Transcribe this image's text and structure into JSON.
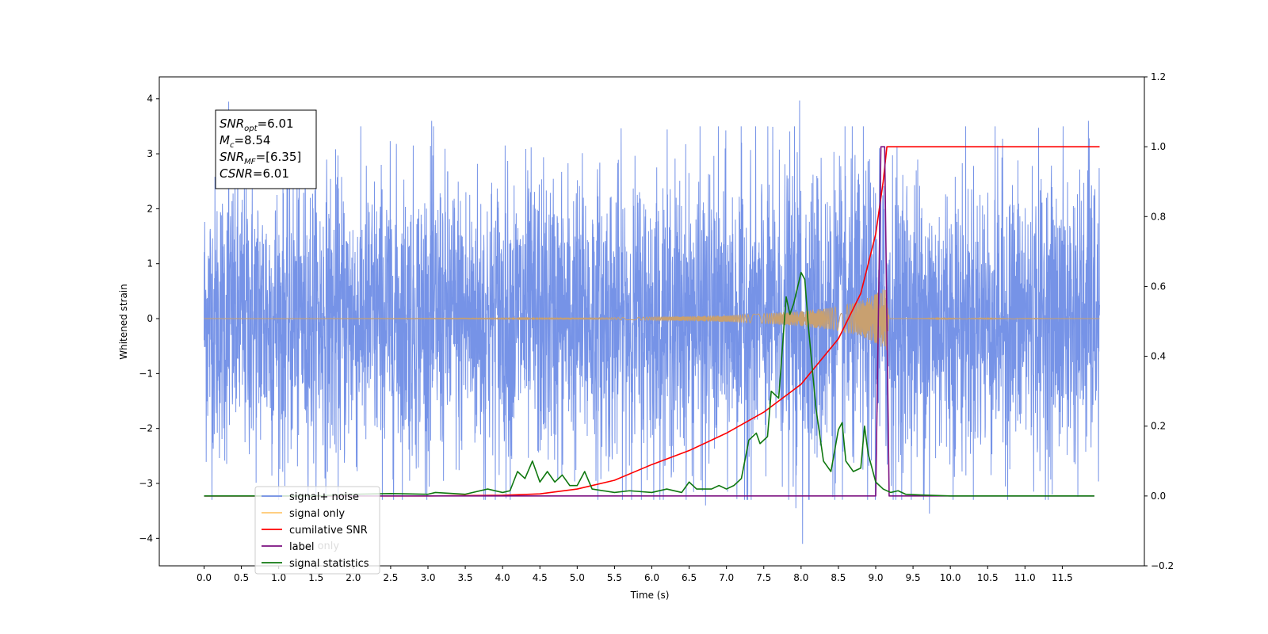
{
  "chart_data": {
    "type": "line",
    "xlabel": "Time (s)",
    "ylabel_left": "Whitened strain",
    "ylabel_right": "",
    "xlim": [
      -0.6,
      12.6
    ],
    "ylim_left": [
      -4.5,
      4.4
    ],
    "ylim_right": [
      -0.2,
      1.2
    ],
    "x_ticks": [
      0.0,
      0.5,
      1.0,
      1.5,
      2.0,
      2.5,
      3.0,
      3.5,
      4.0,
      4.5,
      5.0,
      5.5,
      6.0,
      6.5,
      7.0,
      7.5,
      8.0,
      8.5,
      9.0,
      9.5,
      10.0,
      10.5,
      11.0,
      11.5
    ],
    "x_tick_labels": [
      "0.0",
      "0.5",
      "1.0",
      "1.5",
      "2.0",
      "2.5",
      "3.0",
      "3.5",
      "4.0",
      "4.5",
      "5.0",
      "5.5",
      "6.0",
      "6.5",
      "7.0",
      "7.5",
      "8.0",
      "8.5",
      "9.0",
      "9.5",
      "10.0",
      "10.5",
      "11.0",
      "11.5"
    ],
    "y_left_ticks": [
      -4,
      -3,
      -2,
      -1,
      0,
      1,
      2,
      3,
      4
    ],
    "y_left_tick_labels": [
      "−4",
      "−3",
      "−2",
      "−1",
      "0",
      "1",
      "2",
      "3",
      "4"
    ],
    "y_right_ticks": [
      -0.2,
      0.0,
      0.2,
      0.4,
      0.6,
      0.8,
      1.0,
      1.2
    ],
    "y_right_tick_labels": [
      "−0.2",
      "0.0",
      "0.2",
      "0.4",
      "0.6",
      "0.8",
      "1.0",
      "1.2"
    ],
    "grid": false,
    "legend_position": "lower-left",
    "series": [
      {
        "name": "signal+ noise",
        "axis": "left",
        "color": "#6f8de6",
        "x_range": [
          0.0,
          12.0
        ],
        "envelope": [
          [
            0.0,
            2.3
          ],
          [
            1.0,
            2.4
          ],
          [
            2.0,
            2.4
          ],
          [
            3.0,
            2.4
          ],
          [
            4.0,
            2.4
          ],
          [
            5.0,
            2.4
          ],
          [
            6.0,
            2.4
          ],
          [
            7.0,
            2.4
          ],
          [
            8.0,
            2.5
          ],
          [
            9.0,
            2.6
          ],
          [
            10.0,
            2.4
          ],
          [
            11.0,
            2.4
          ],
          [
            12.0,
            2.4
          ]
        ],
        "peaks_high": [
          [
            0.33,
            3.95
          ],
          [
            3.05,
            3.6
          ],
          [
            7.98,
            3.97
          ],
          [
            11.85,
            3.6
          ],
          [
            9.05,
            3.1
          ]
        ],
        "peaks_low": [
          [
            3.75,
            -3.3
          ],
          [
            8.02,
            -4.1
          ],
          [
            9.72,
            -3.55
          ],
          [
            6.72,
            -3.4
          ],
          [
            7.93,
            -3.45
          ]
        ]
      },
      {
        "name": "signal only",
        "axis": "left",
        "color": "#c8a070",
        "envelope": [
          [
            0.0,
            0.0
          ],
          [
            5.0,
            0.01
          ],
          [
            6.0,
            0.03
          ],
          [
            7.0,
            0.06
          ],
          [
            7.5,
            0.09
          ],
          [
            8.0,
            0.14
          ],
          [
            8.5,
            0.22
          ],
          [
            8.8,
            0.32
          ],
          [
            9.0,
            0.45
          ],
          [
            9.15,
            0.58
          ],
          [
            9.18,
            0.0
          ],
          [
            10.0,
            0.01
          ],
          [
            12.0,
            0.0
          ]
        ]
      },
      {
        "name": "cumilative SNR",
        "axis": "right",
        "color": "#ff0000",
        "points": [
          [
            0.0,
            0.0
          ],
          [
            3.0,
            0.0
          ],
          [
            4.0,
            0.002
          ],
          [
            4.5,
            0.006
          ],
          [
            5.0,
            0.02
          ],
          [
            5.5,
            0.045
          ],
          [
            6.0,
            0.09
          ],
          [
            6.5,
            0.13
          ],
          [
            7.0,
            0.18
          ],
          [
            7.5,
            0.24
          ],
          [
            8.0,
            0.32
          ],
          [
            8.5,
            0.45
          ],
          [
            8.8,
            0.58
          ],
          [
            9.0,
            0.75
          ],
          [
            9.1,
            0.9
          ],
          [
            9.15,
            1.0
          ],
          [
            12.0,
            1.0
          ]
        ]
      },
      {
        "name": "label",
        "axis": "right",
        "color": "#7b0f80",
        "points": [
          [
            0.0,
            0.0
          ],
          [
            9.0,
            0.0
          ],
          [
            9.07,
            1.0
          ],
          [
            9.12,
            1.0
          ],
          [
            9.18,
            0.0
          ],
          [
            11.93,
            0.0
          ]
        ]
      },
      {
        "name": "signal statistics",
        "axis": "right",
        "color": "#107810",
        "points": [
          [
            0.0,
            0.0
          ],
          [
            0.5,
            0.0
          ],
          [
            1.0,
            0.0
          ],
          [
            1.5,
            0.0
          ],
          [
            2.0,
            0.005
          ],
          [
            2.5,
            0.007
          ],
          [
            3.0,
            0.005
          ],
          [
            3.1,
            0.01
          ],
          [
            3.5,
            0.005
          ],
          [
            3.8,
            0.02
          ],
          [
            4.0,
            0.01
          ],
          [
            4.1,
            0.015
          ],
          [
            4.2,
            0.07
          ],
          [
            4.3,
            0.05
          ],
          [
            4.4,
            0.1
          ],
          [
            4.5,
            0.04
          ],
          [
            4.6,
            0.07
          ],
          [
            4.7,
            0.04
          ],
          [
            4.8,
            0.06
          ],
          [
            4.9,
            0.03
          ],
          [
            5.0,
            0.03
          ],
          [
            5.1,
            0.07
          ],
          [
            5.2,
            0.02
          ],
          [
            5.5,
            0.01
          ],
          [
            5.7,
            0.015
          ],
          [
            6.0,
            0.01
          ],
          [
            6.2,
            0.02
          ],
          [
            6.4,
            0.01
          ],
          [
            6.5,
            0.04
          ],
          [
            6.6,
            0.02
          ],
          [
            6.8,
            0.02
          ],
          [
            6.9,
            0.03
          ],
          [
            7.0,
            0.02
          ],
          [
            7.1,
            0.03
          ],
          [
            7.2,
            0.05
          ],
          [
            7.3,
            0.16
          ],
          [
            7.4,
            0.18
          ],
          [
            7.45,
            0.15
          ],
          [
            7.55,
            0.17
          ],
          [
            7.6,
            0.3
          ],
          [
            7.7,
            0.28
          ],
          [
            7.8,
            0.57
          ],
          [
            7.85,
            0.52
          ],
          [
            7.9,
            0.55
          ],
          [
            8.0,
            0.64
          ],
          [
            8.05,
            0.62
          ],
          [
            8.1,
            0.48
          ],
          [
            8.2,
            0.25
          ],
          [
            8.3,
            0.1
          ],
          [
            8.4,
            0.07
          ],
          [
            8.5,
            0.19
          ],
          [
            8.55,
            0.21
          ],
          [
            8.6,
            0.1
          ],
          [
            8.7,
            0.07
          ],
          [
            8.8,
            0.08
          ],
          [
            8.85,
            0.2
          ],
          [
            8.9,
            0.12
          ],
          [
            9.0,
            0.04
          ],
          [
            9.1,
            0.02
          ],
          [
            9.2,
            0.01
          ],
          [
            9.3,
            0.015
          ],
          [
            9.4,
            0.005
          ],
          [
            9.6,
            0.003
          ],
          [
            10.0,
            0.0
          ],
          [
            11.5,
            0.0
          ],
          [
            11.93,
            0.0
          ]
        ]
      }
    ],
    "legend_entries": [
      "signal+ noise",
      "signal only",
      "cumilative SNR",
      "label",
      "signal statistics"
    ],
    "legend_overlap_text": "label only",
    "annotation": {
      "lines": [
        {
          "main": "SNR",
          "sub": "opt",
          "rest": "=6.01"
        },
        {
          "main": "M",
          "sub": "c",
          "rest": "=8.54"
        },
        {
          "main": "SNR",
          "sub": "MF",
          "rest": "=[6.35]"
        },
        {
          "main": "CSNR",
          "sub": "",
          "rest": "=6.01"
        }
      ]
    }
  }
}
